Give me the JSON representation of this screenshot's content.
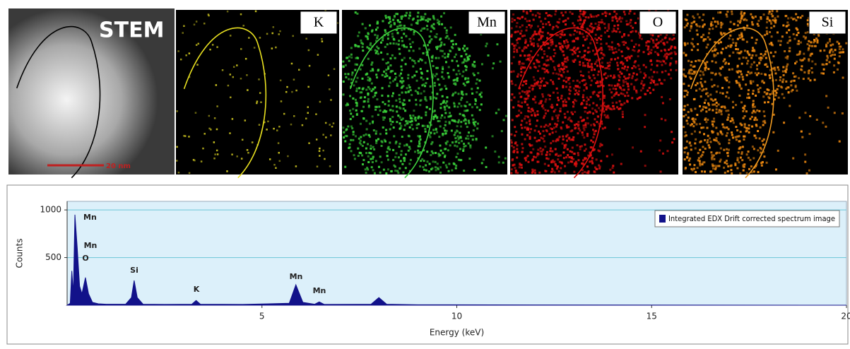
{
  "panels": [
    {
      "label": "STEM",
      "scale_bar": "20 nm"
    },
    {
      "label": "K"
    },
    {
      "label": "Mn"
    },
    {
      "label": "O"
    },
    {
      "label": "Si"
    }
  ],
  "chart_data": {
    "type": "area",
    "xlabel": "Energy (keV)",
    "ylabel": "Counts",
    "xlim": [
      0,
      20
    ],
    "xticks": [
      5,
      10,
      15,
      20
    ],
    "ylim": [
      0,
      1090
    ],
    "yticks": [
      500,
      1000
    ],
    "grid": true,
    "legend": "top-right",
    "series": [
      {
        "name": "Integrated EDX Drift corrected spectrum image",
        "color": "#12128a",
        "x": [
          0.0,
          0.08,
          0.12,
          0.16,
          0.2,
          0.26,
          0.32,
          0.38,
          0.47,
          0.55,
          0.65,
          0.8,
          1.0,
          1.5,
          1.65,
          1.72,
          1.8,
          1.95,
          2.5,
          3.2,
          3.31,
          3.42,
          4.5,
          5.7,
          5.87,
          6.05,
          6.35,
          6.47,
          6.6,
          7.8,
          8.0,
          8.2,
          9.0,
          12.0,
          20.0
        ],
        "values": [
          0,
          20,
          360,
          120,
          950,
          600,
          200,
          120,
          290,
          120,
          30,
          15,
          10,
          10,
          80,
          260,
          80,
          10,
          8,
          10,
          50,
          10,
          8,
          20,
          215,
          30,
          10,
          35,
          8,
          10,
          80,
          10,
          5,
          3,
          0
        ]
      }
    ],
    "annotations": [
      "Mn",
      "Mn",
      "O",
      "Si",
      "K",
      "Mn",
      "Mn"
    ]
  }
}
